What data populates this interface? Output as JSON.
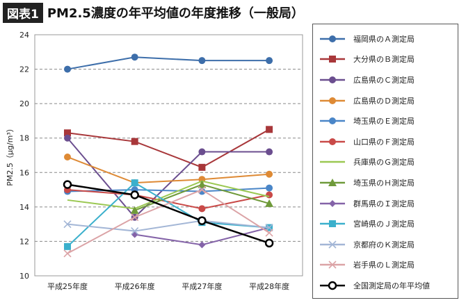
{
  "header": {
    "badge": "図表1",
    "title": "PM2.5濃度の年平均値の年度推移（一般局）"
  },
  "chart_data": {
    "type": "line",
    "title": "PM2.5濃度の年平均値の年度推移（一般局）",
    "ylabel": "PM2.5（μg/m³）",
    "xlabel": "",
    "categories": [
      "平成25年度",
      "平成26年度",
      "平成27年度",
      "平成28年度"
    ],
    "ylim": [
      10,
      24
    ],
    "yticks": [
      10,
      12,
      14,
      16,
      18,
      20,
      22,
      24
    ],
    "grid": true,
    "legend": "right",
    "series": [
      {
        "name": "福岡県のＡ測定局",
        "values": [
          22.0,
          22.7,
          22.5,
          22.5
        ],
        "color": "#3d6eaa",
        "marker": "circle"
      },
      {
        "name": "大分県のＢ測定局",
        "values": [
          18.3,
          17.8,
          16.3,
          18.5
        ],
        "color": "#a8373a",
        "marker": "square"
      },
      {
        "name": "広島県のＣ測定局",
        "values": [
          18.0,
          13.4,
          17.2,
          17.2
        ],
        "color": "#6b4e8f",
        "marker": "circle"
      },
      {
        "name": "広島県のＤ測定局",
        "values": [
          16.9,
          15.4,
          15.6,
          15.9
        ],
        "color": "#de8a35",
        "marker": "circle"
      },
      {
        "name": "埼玉県のＥ測定局",
        "values": [
          14.9,
          15.0,
          14.9,
          15.1
        ],
        "color": "#4a86c8",
        "marker": "circle"
      },
      {
        "name": "山口県のＦ測定局",
        "values": [
          15.0,
          14.7,
          13.9,
          14.7
        ],
        "color": "#c94a48",
        "marker": "circle"
      },
      {
        "name": "兵庫県のＧ測定局",
        "values": [
          14.4,
          13.9,
          15.5,
          14.6
        ],
        "color": "#9bc852",
        "marker": "none"
      },
      {
        "name": "埼玉県のＨ測定局",
        "values": [
          null,
          13.8,
          15.3,
          14.2
        ],
        "color": "#6f9a3a",
        "marker": "triangle"
      },
      {
        "name": "群馬県のＩ測定局",
        "values": [
          null,
          12.4,
          11.8,
          12.8
        ],
        "color": "#8463a8",
        "marker": "diamond"
      },
      {
        "name": "宮崎県のＪ測定局",
        "values": [
          11.7,
          15.4,
          13.1,
          12.8
        ],
        "color": "#3bb0cc",
        "marker": "square"
      },
      {
        "name": "京都府のＫ測定局",
        "values": [
          13.0,
          12.6,
          13.2,
          12.8
        ],
        "color": "#a3b6d6",
        "marker": "x"
      },
      {
        "name": "岩手県のＬ測定局",
        "values": [
          11.3,
          13.4,
          15.0,
          12.5
        ],
        "color": "#dba3a6",
        "marker": "x"
      },
      {
        "name": "全国測定局の年平均値",
        "values": [
          15.3,
          14.7,
          13.2,
          11.9
        ],
        "color": "#000000",
        "marker": "open-circle"
      }
    ]
  }
}
